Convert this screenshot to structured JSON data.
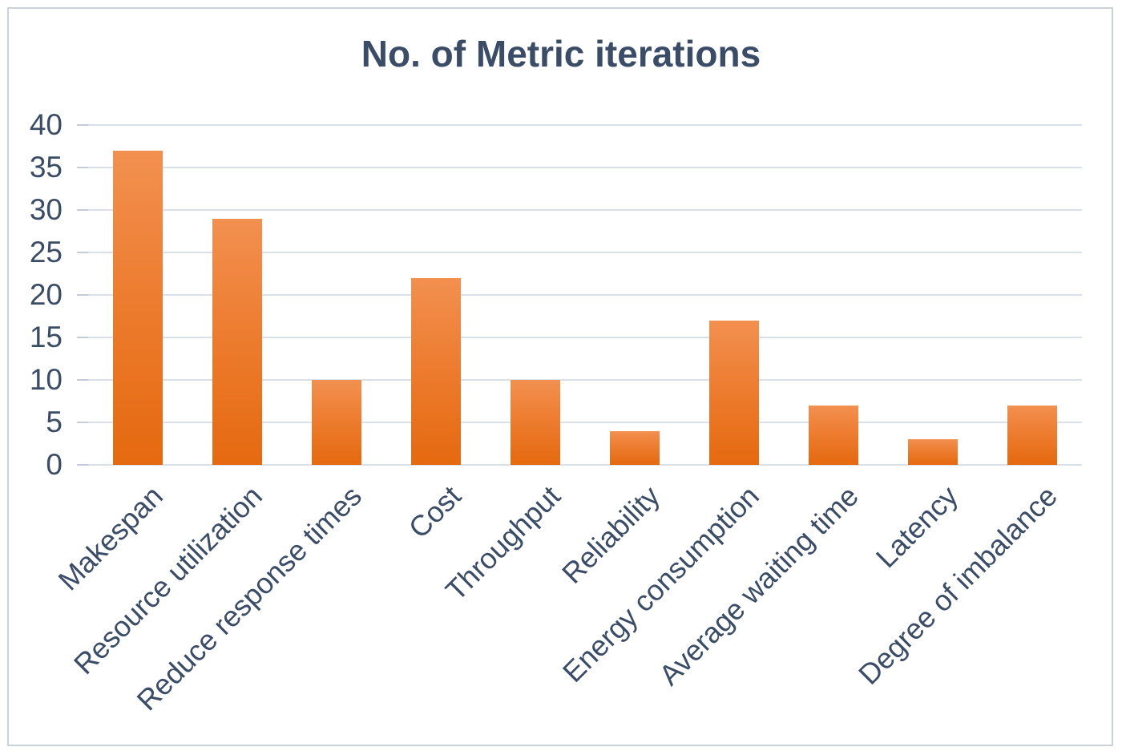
{
  "chart_data": {
    "type": "bar",
    "title": "No. of Metric iterations",
    "categories": [
      "Makespan",
      "Resource utilization",
      "Reduce response times",
      "Cost",
      "Throughput",
      "Reliability",
      "Energy consumption",
      "Average waiting time",
      "Latency",
      "Degree of imbalance"
    ],
    "values": [
      37,
      29,
      10,
      22,
      10,
      4,
      17,
      7,
      3,
      7
    ],
    "xlabel": "",
    "ylabel": "",
    "ylim": [
      0,
      40
    ],
    "yticks": [
      0,
      5,
      10,
      15,
      20,
      25,
      30,
      35,
      40
    ],
    "grid": true,
    "legend": false,
    "x_label_rotation_deg": 45,
    "colors": {
      "bar_top": "#f29050",
      "bar_mid": "#ed7d31",
      "bar_bottom": "#e5690f",
      "text": "#3b4c66",
      "gridline": "#dae0e9",
      "tick": "#c2cbd8",
      "border": "#cbd1da",
      "background": "#ffffff"
    }
  }
}
